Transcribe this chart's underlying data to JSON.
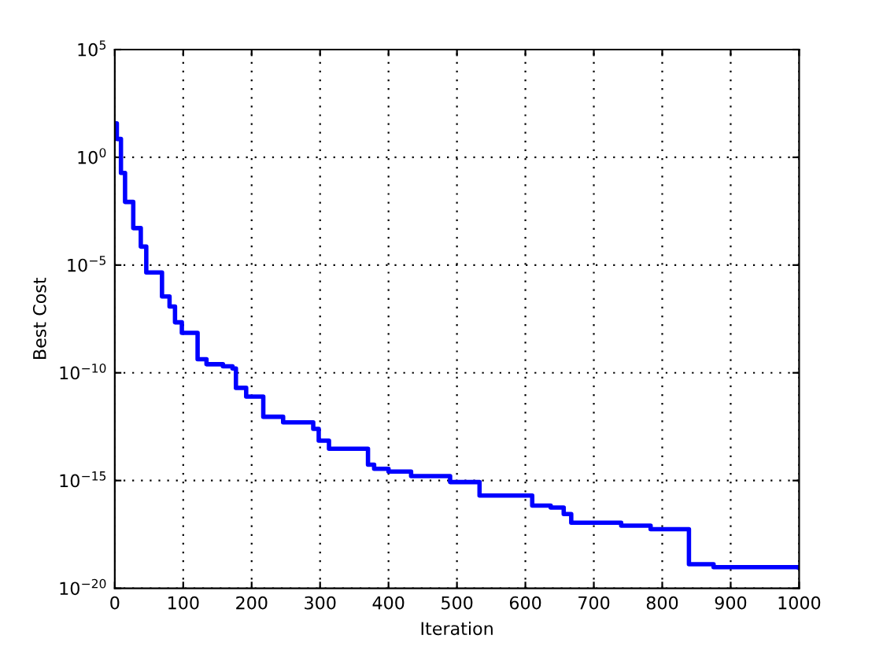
{
  "chart_data": {
    "type": "step",
    "xlabel": "Iteration",
    "ylabel": "Best Cost",
    "log": "y",
    "grid": true,
    "line_style": "solid",
    "xlim": [
      0,
      1000
    ],
    "xticks": [
      0,
      100,
      200,
      300,
      400,
      500,
      600,
      700,
      800,
      900,
      1000
    ],
    "ylim": [
      1e-20,
      100000
    ],
    "yticks": [
      {
        "value": 1e-20,
        "label": "10$^{−20}$"
      },
      {
        "value": 1e-15,
        "label": "10$^{−15}$"
      },
      {
        "value": 1e-10,
        "label": "10$^{−10}$"
      },
      {
        "value": 1e-05,
        "label": "10$^{−5}$"
      },
      {
        "value": 1,
        "label": "10$^{0}$"
      },
      {
        "value": 100000,
        "label": "10$^{5}$"
      }
    ],
    "series": [
      {
        "color": "#0000ff",
        "x": [
          1,
          3,
          9,
          15,
          27,
          38,
          46,
          69,
          80,
          88,
          98,
          121,
          134,
          158,
          172,
          177,
          192,
          217,
          246,
          290,
          298,
          313,
          370,
          379,
          400,
          433,
          490,
          533,
          610,
          637,
          656,
          667,
          740,
          783,
          839,
          875,
          1000
        ],
        "values": [
          38,
          7.1,
          0.19,
          0.0085,
          0.00052,
          7.2e-05,
          4.5e-06,
          3.5e-07,
          1.2e-07,
          2.2e-08,
          7.1e-09,
          4.3e-10,
          2.5e-10,
          2e-10,
          1.6e-10,
          2e-11,
          7.9e-12,
          9.1e-13,
          5e-13,
          2.5e-13,
          7.1e-14,
          3e-14,
          5.5e-15,
          3.5e-15,
          2.6e-15,
          1.6e-15,
          8.5e-16,
          2e-16,
          6.9e-17,
          5.6e-17,
          2.8e-17,
          1.1e-17,
          8.1e-18,
          5.5e-18,
          1.3e-19,
          9.5e-20,
          9.1e-20
        ]
      }
    ]
  }
}
